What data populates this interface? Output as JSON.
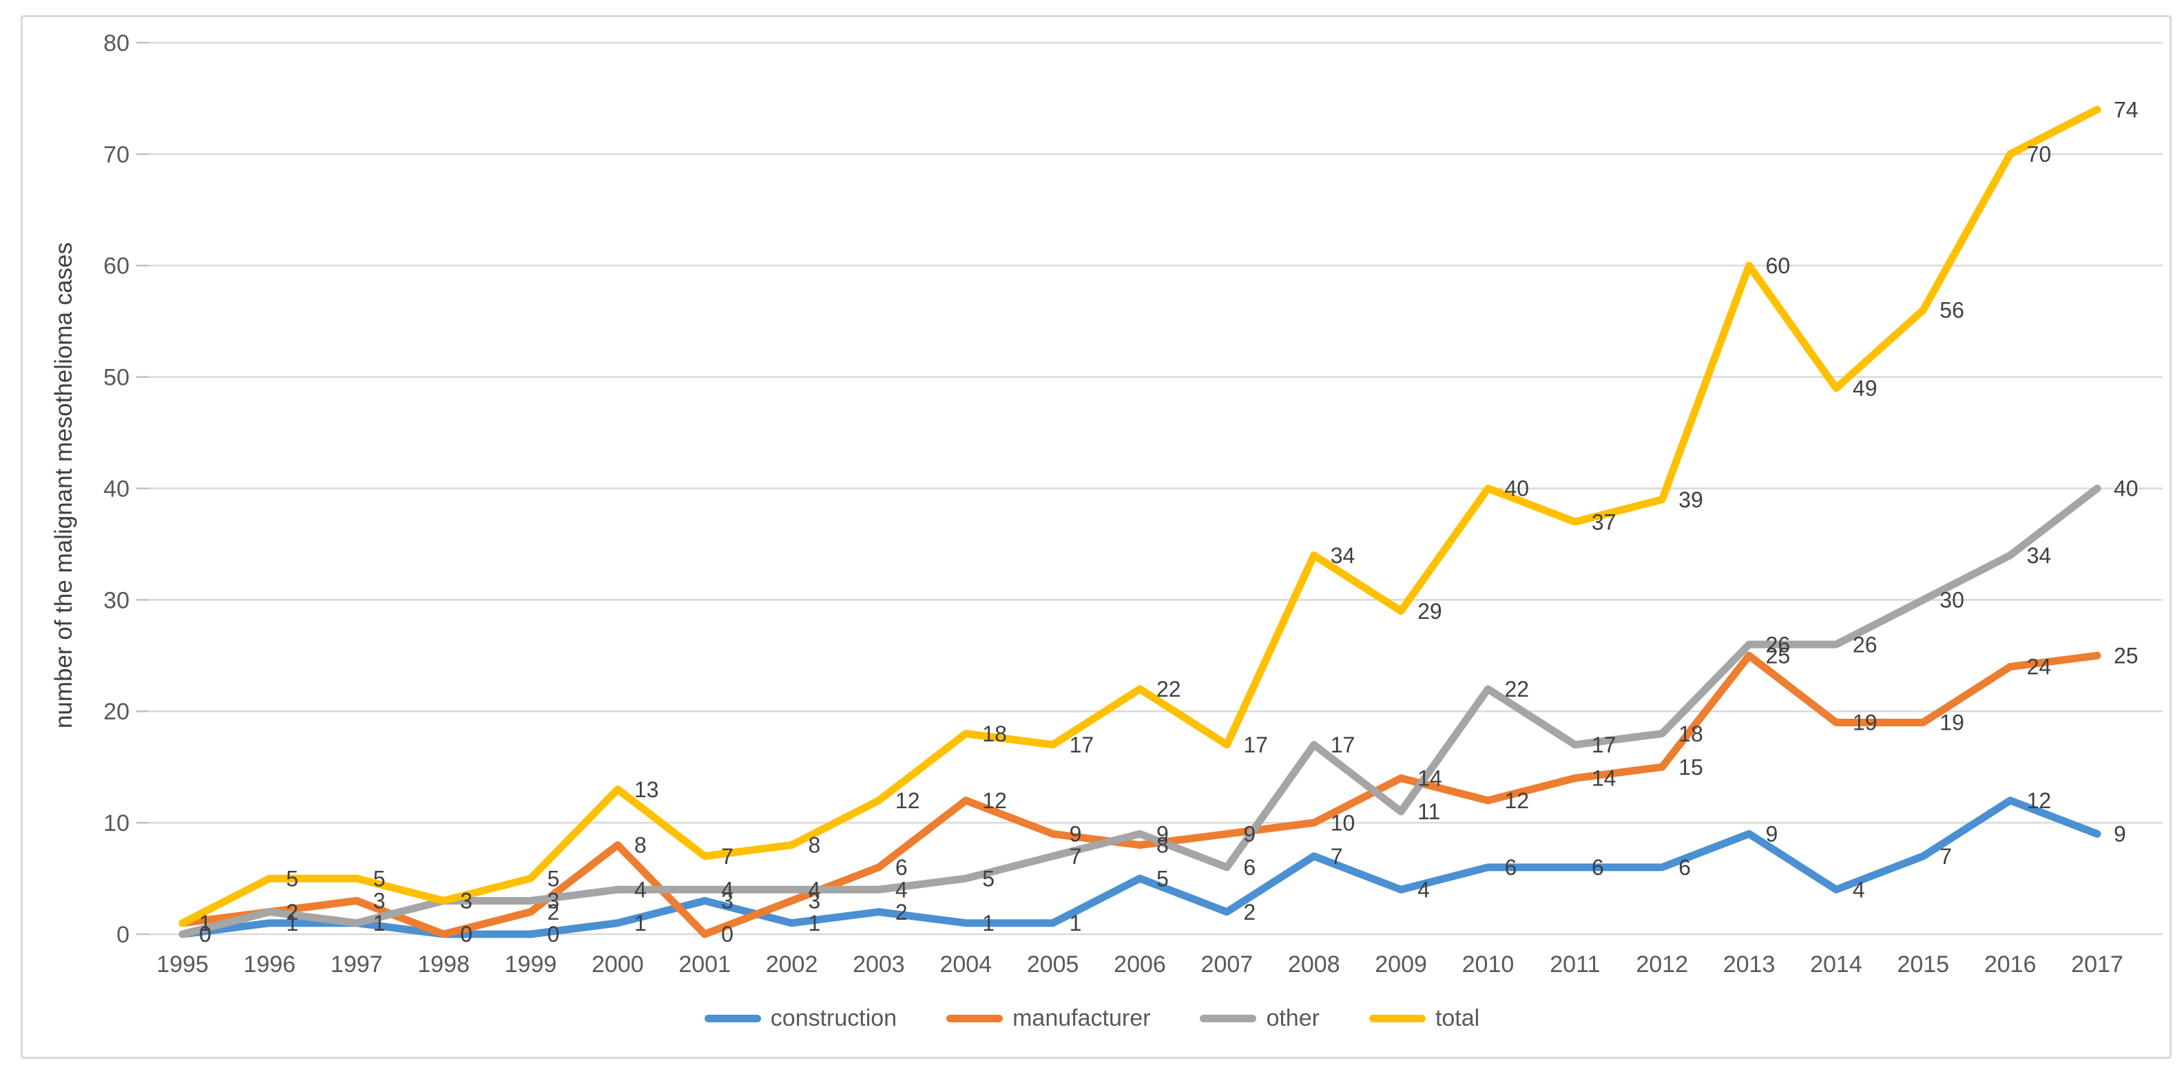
{
  "chart_data": {
    "type": "line",
    "title": "",
    "xlabel": "",
    "ylabel": "number of  the malignant mesothelioma cases",
    "ylim": [
      0,
      80
    ],
    "yticks": [
      0,
      10,
      20,
      30,
      40,
      50,
      60,
      70,
      80
    ],
    "grid": true,
    "data_labels": true,
    "legend_position": "bottom",
    "categories": [
      "1995",
      "1996",
      "1997",
      "1998",
      "1999",
      "2000",
      "2001",
      "2002",
      "2003",
      "2004",
      "2005",
      "2006",
      "2007",
      "2008",
      "2009",
      "2010",
      "2011",
      "2012",
      "2013",
      "2014",
      "2015",
      "2016",
      "2017"
    ],
    "series": [
      {
        "name": "construction",
        "color": "#4A90D2",
        "values": [
          0,
          1,
          1,
          0,
          0,
          1,
          3,
          1,
          2,
          1,
          1,
          5,
          2,
          7,
          4,
          6,
          6,
          6,
          9,
          4,
          7,
          12,
          9
        ]
      },
      {
        "name": "manufacturer",
        "color": "#ED7D31",
        "values": [
          1,
          2,
          3,
          0,
          2,
          8,
          0,
          3,
          6,
          12,
          9,
          8,
          9,
          10,
          14,
          12,
          14,
          15,
          25,
          19,
          19,
          24,
          25
        ]
      },
      {
        "name": "other",
        "color": "#A5A5A5",
        "values": [
          0,
          2,
          1,
          3,
          3,
          4,
          4,
          4,
          4,
          5,
          7,
          9,
          6,
          17,
          11,
          22,
          17,
          18,
          26,
          26,
          30,
          34,
          40
        ]
      },
      {
        "name": "total",
        "color": "#FFC000",
        "values": [
          1,
          5,
          5,
          3,
          5,
          13,
          7,
          8,
          12,
          18,
          17,
          22,
          17,
          34,
          29,
          40,
          37,
          39,
          60,
          49,
          56,
          70,
          74
        ]
      }
    ]
  },
  "colors": {
    "gridline": "#d9d9d9",
    "axis_tick": "#bfbfbf",
    "tick_text": "#595959",
    "label_text": "#404040",
    "figure_border": "#d9d9d9"
  }
}
